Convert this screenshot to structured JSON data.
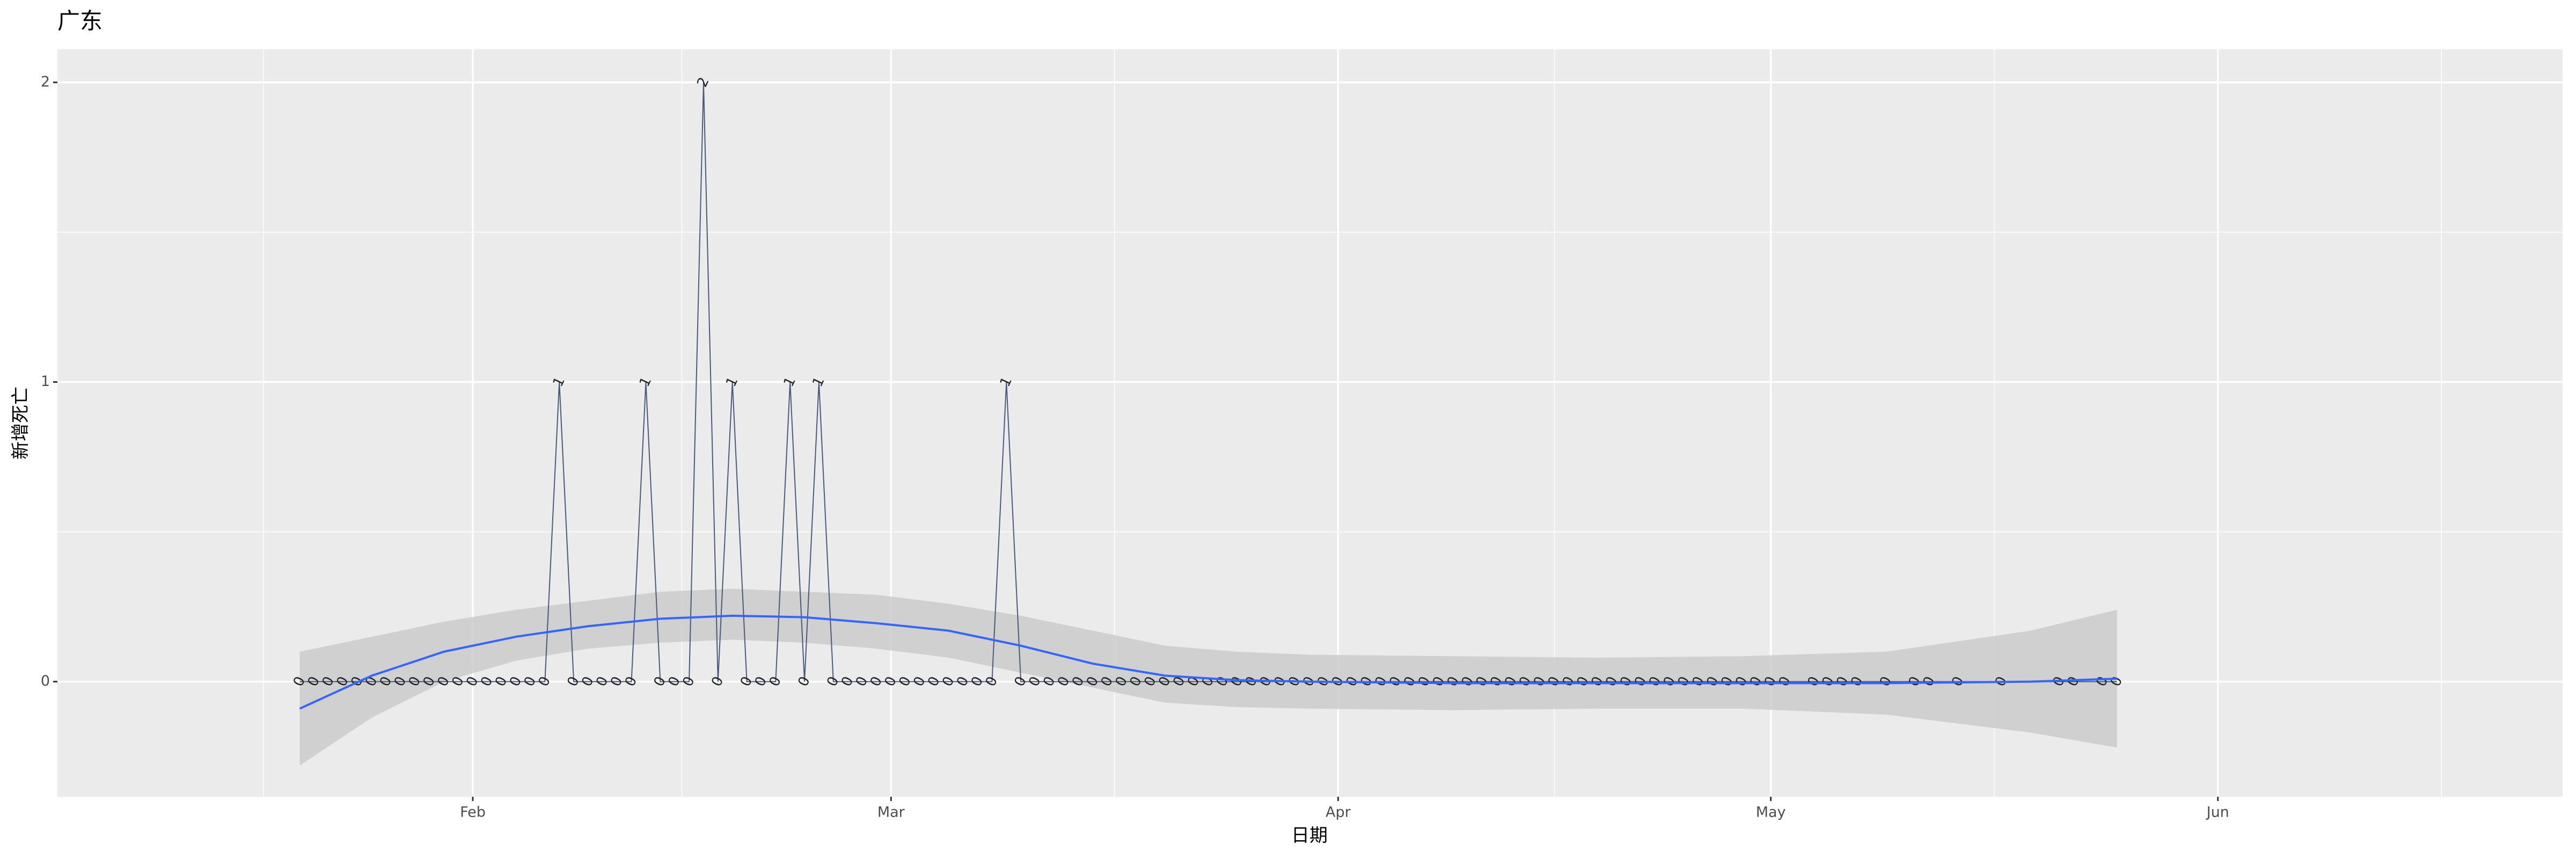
{
  "chart_data": {
    "type": "line",
    "title": "广东",
    "x_label": "日期",
    "y_label": "新增死亡",
    "x": [
      20,
      21,
      22,
      23,
      24,
      25,
      26,
      27,
      28,
      29,
      30,
      31,
      32,
      33,
      34,
      35,
      36,
      37,
      38,
      39,
      40,
      41,
      42,
      43,
      44,
      45,
      46,
      47,
      48,
      49,
      50,
      51,
      52,
      53,
      54,
      55,
      56,
      57,
      58,
      59,
      60,
      61,
      62,
      63,
      64,
      65,
      66,
      67,
      68,
      69,
      70,
      71,
      72,
      73,
      74,
      75,
      76,
      77,
      78,
      79,
      80,
      81,
      82,
      83,
      84,
      85,
      86,
      87,
      88,
      89,
      90,
      91,
      92,
      93,
      94,
      95,
      96,
      97,
      98,
      99,
      100,
      101,
      102,
      103,
      104,
      105,
      106,
      107,
      108,
      109,
      110,
      111,
      112,
      113,
      114,
      115,
      116,
      117,
      118,
      119,
      120,
      121,
      122,
      123,
      125,
      126,
      127,
      128,
      130,
      132,
      133,
      135,
      138,
      142,
      143,
      145,
      146
    ],
    "series": [
      {
        "color": "#4a5a7c",
        "values": [
          0,
          0,
          0,
          0,
          0,
          0,
          0,
          0,
          0,
          0,
          0,
          0,
          0,
          0,
          0,
          0,
          0,
          0,
          1,
          0,
          0,
          0,
          0,
          0,
          1,
          0,
          0,
          0,
          2,
          0,
          1,
          0,
          0,
          0,
          1,
          0,
          1,
          0,
          0,
          0,
          0,
          0,
          0,
          0,
          0,
          0,
          0,
          0,
          0,
          1,
          0,
          0,
          0,
          0,
          0,
          0,
          0,
          0,
          0,
          0,
          0,
          0,
          0,
          0,
          0,
          0,
          0,
          0,
          0,
          0,
          0,
          0,
          0,
          0,
          0,
          0,
          0,
          0,
          0,
          0,
          0,
          0,
          0,
          0,
          0,
          0,
          0,
          0,
          0,
          0,
          0,
          0,
          0,
          0,
          0,
          0,
          0,
          0,
          0,
          0,
          0,
          0,
          0,
          0,
          0,
          0,
          0,
          0,
          0,
          0,
          0,
          0,
          0,
          0,
          0,
          0,
          0
        ]
      }
    ],
    "smooth": {
      "color": "#3366ff",
      "band_color": "#cbcbcb",
      "x": [
        20,
        25,
        30,
        35,
        40,
        45,
        50,
        55,
        60,
        65,
        70,
        75,
        80,
        85,
        90,
        100,
        110,
        120,
        130,
        140,
        146
      ],
      "values": [
        -0.09,
        0.02,
        0.1,
        0.15,
        0.185,
        0.21,
        0.22,
        0.215,
        0.195,
        0.17,
        0.12,
        0.06,
        0.02,
        0.005,
        0,
        -0.005,
        -0.005,
        -0.005,
        -0.005,
        0,
        0.01
      ],
      "lower": [
        -0.28,
        -0.12,
        0,
        0.07,
        0.11,
        0.13,
        0.14,
        0.13,
        0.11,
        0.08,
        0.03,
        -0.02,
        -0.07,
        -0.085,
        -0.09,
        -0.095,
        -0.09,
        -0.09,
        -0.11,
        -0.17,
        -0.22
      ],
      "upper": [
        0.1,
        0.15,
        0.2,
        0.24,
        0.27,
        0.3,
        0.31,
        0.3,
        0.29,
        0.26,
        0.22,
        0.17,
        0.12,
        0.1,
        0.09,
        0.085,
        0.08,
        0.085,
        0.1,
        0.17,
        0.24
      ]
    },
    "xlim": [
      3.2,
      176.9
    ],
    "xticks": [
      {
        "value": 32,
        "label": "Feb"
      },
      {
        "value": 61,
        "label": "Mar"
      },
      {
        "value": 92,
        "label": "Apr"
      },
      {
        "value": 122,
        "label": "May"
      },
      {
        "value": 153,
        "label": "Jun"
      }
    ],
    "ylim": [
      -0.384,
      2.11
    ],
    "yticks": [
      0,
      1,
      2
    ],
    "grid": true,
    "panel_color": "#ebebeb"
  }
}
